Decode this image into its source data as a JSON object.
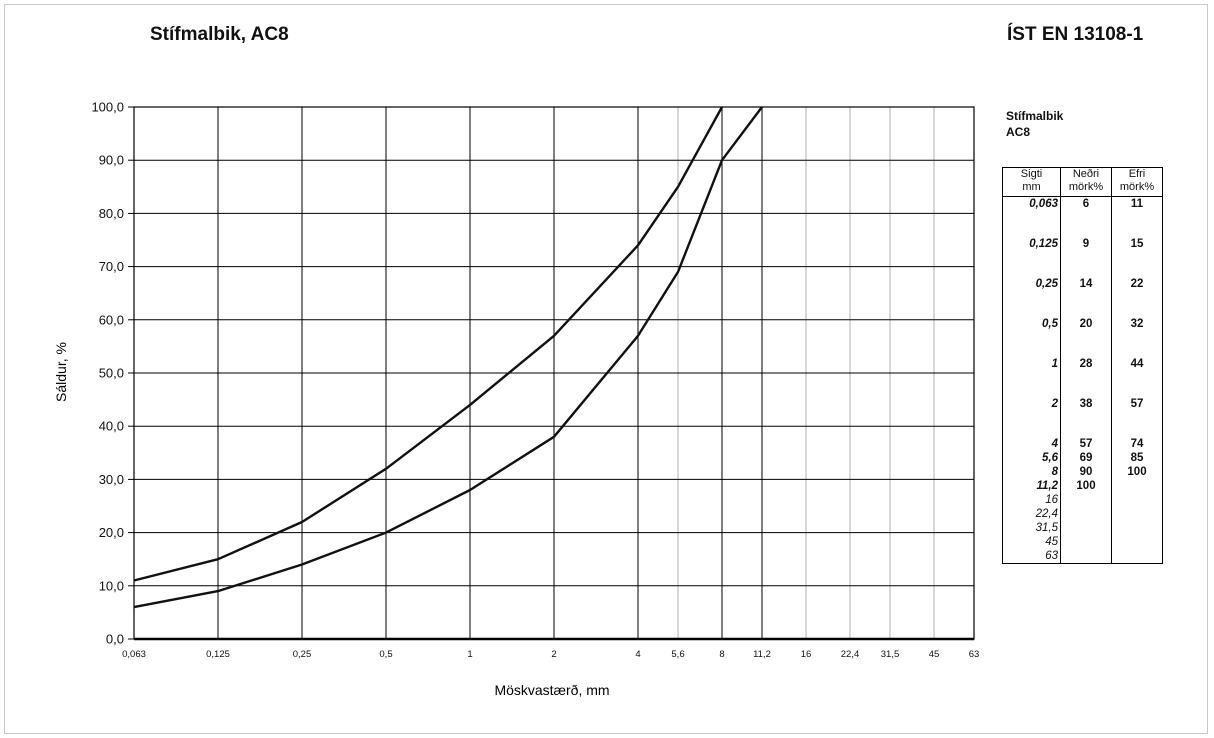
{
  "header": {
    "title": "Stífmalbik, AC8",
    "standard": "ÍST EN 13108-1"
  },
  "side_panel": {
    "title_line1": "Stífmalbik",
    "title_line2": "AC8",
    "col_sieve_line1": "Sigti",
    "col_sieve_line2": "mm",
    "col_lower_line1": "Neðri",
    "col_lower_line2": "mörk%",
    "col_upper_line1": "Efri",
    "col_upper_line2": "mörk%",
    "rows": [
      {
        "sieve": "0,063",
        "lower": "6",
        "upper": "11",
        "gap": 2
      },
      {
        "sieve": "0,125",
        "lower": "9",
        "upper": "15",
        "gap": 2
      },
      {
        "sieve": "0,25",
        "lower": "14",
        "upper": "22",
        "gap": 2
      },
      {
        "sieve": "0,5",
        "lower": "20",
        "upper": "32",
        "gap": 2
      },
      {
        "sieve": "1",
        "lower": "28",
        "upper": "44",
        "gap": 2
      },
      {
        "sieve": "2",
        "lower": "38",
        "upper": "57",
        "gap": 2
      },
      {
        "sieve": "4",
        "lower": "57",
        "upper": "74",
        "gap": 0
      },
      {
        "sieve": "5,6",
        "lower": "69",
        "upper": "85",
        "gap": 0
      },
      {
        "sieve": "8",
        "lower": "90",
        "upper": "100",
        "gap": 0
      },
      {
        "sieve": "11,2",
        "lower": "100",
        "upper": "",
        "gap": 0
      },
      {
        "sieve": "16",
        "lower": "",
        "upper": "",
        "gap": 0
      },
      {
        "sieve": "22,4",
        "lower": "",
        "upper": "",
        "gap": 0
      },
      {
        "sieve": "31,5",
        "lower": "",
        "upper": "",
        "gap": 0
      },
      {
        "sieve": "45",
        "lower": "",
        "upper": "",
        "gap": 0
      },
      {
        "sieve": "63",
        "lower": "",
        "upper": "",
        "gap": 0
      }
    ]
  },
  "chart_data": {
    "type": "line",
    "xlabel": "Möskvastærð, mm",
    "ylabel": "Sáldur, %",
    "x_scale": "sieve-series",
    "x_ticks": [
      "0,063",
      "0,125",
      "0,25",
      "0,5",
      "1",
      "2",
      "4",
      "5,6",
      "8",
      "11,2",
      "16",
      "22,4",
      "31,5",
      "45",
      "63"
    ],
    "x_values": [
      0.063,
      0.125,
      0.25,
      0.5,
      1,
      2,
      4,
      5.6,
      8,
      11.2,
      16,
      22.4,
      31.5,
      45,
      63
    ],
    "y_ticks": [
      "0,0",
      "10,0",
      "20,0",
      "30,0",
      "40,0",
      "50,0",
      "60,0",
      "70,0",
      "80,0",
      "90,0",
      "100,0"
    ],
    "ylim": [
      0,
      100
    ],
    "grid": true,
    "series": [
      {
        "x": [
          0.063,
          0.125,
          0.25,
          0.5,
          1,
          2,
          4,
          5.6,
          8,
          11.2
        ],
        "y": [
          6,
          9,
          14,
          20,
          28,
          38,
          57,
          69,
          90,
          100
        ]
      },
      {
        "x": [
          0.063,
          0.125,
          0.25,
          0.5,
          1,
          2,
          4,
          5.6,
          8
        ],
        "y": [
          11,
          15,
          22,
          32,
          44,
          57,
          74,
          85,
          100
        ]
      }
    ],
    "line_color": "#111111",
    "grid_color": "#000000",
    "minor_grid_color": "#b0b0b0"
  }
}
